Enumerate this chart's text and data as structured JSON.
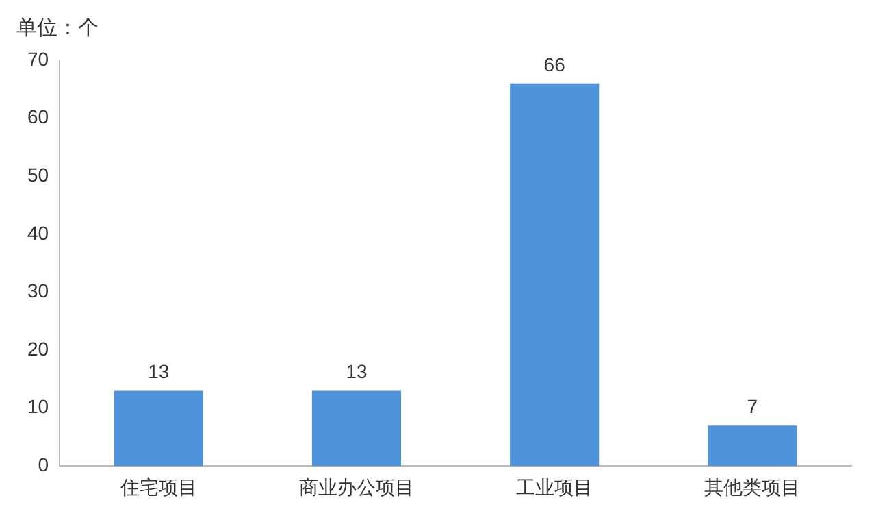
{
  "chart_data": {
    "type": "bar",
    "title": "单位：个",
    "categories": [
      "住宅项目",
      "商业办公项目",
      "工业项目",
      "其他类项目"
    ],
    "values": [
      13,
      13,
      66,
      7
    ],
    "color": "#4f93db",
    "ylim": [
      0,
      70
    ],
    "yticks": [
      0,
      10,
      20,
      30,
      40,
      50,
      60,
      70
    ],
    "grid": false,
    "data_labels": true
  }
}
